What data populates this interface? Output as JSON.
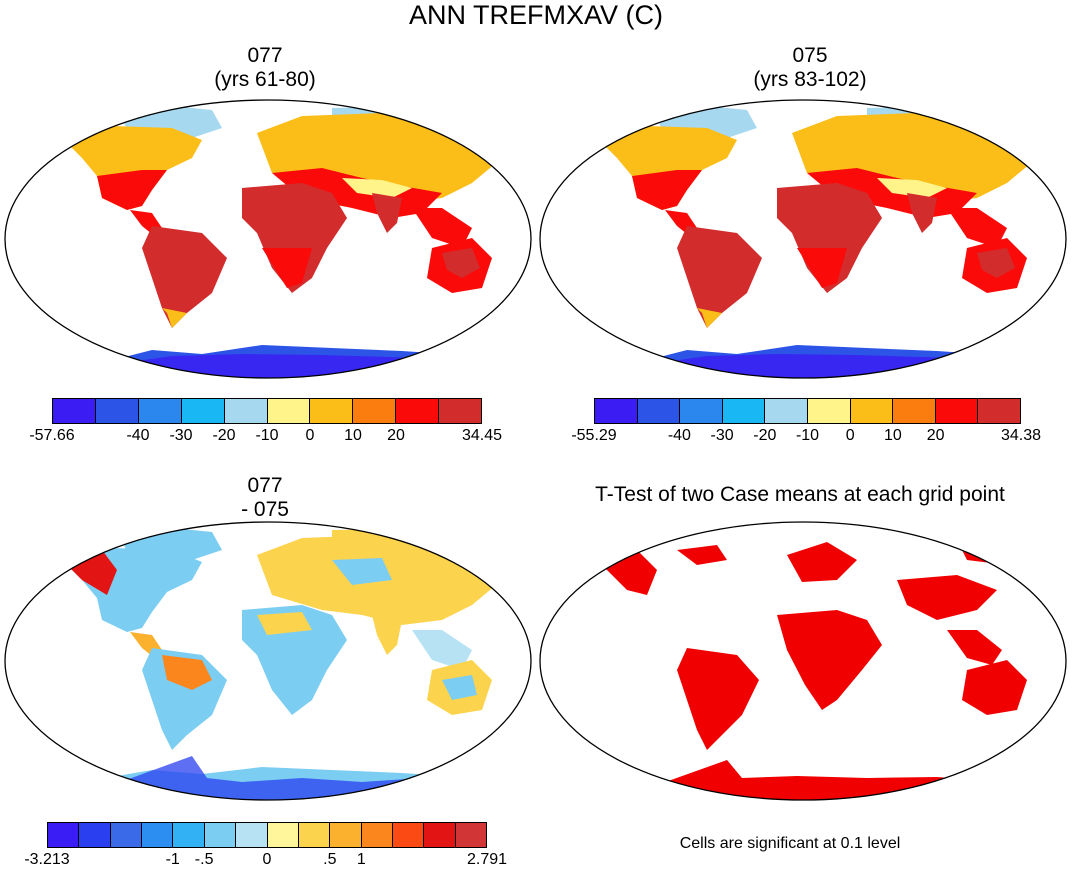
{
  "title": "ANN TREFMXAV (C)",
  "panels": {
    "top_left": {
      "title_line1": "077",
      "title_line2": "(yrs 61-80)"
    },
    "top_right": {
      "title_line1": "075",
      "title_line2": "(yrs 83-102)"
    },
    "bottom_left": {
      "title_line1": "077",
      "title_line2": "- 075"
    },
    "bottom_right": {
      "title": "T-Test of two Case means at each grid point"
    }
  },
  "colorbars": {
    "absolute_left": {
      "colors": [
        "#3b1cf2",
        "#2c55e8",
        "#2b86ee",
        "#1ab7f5",
        "#a6d8f0",
        "#fff48a",
        "#fbbd17",
        "#fb7d10",
        "#fb0a0a",
        "#d22c2c"
      ],
      "labels": [
        "-57.66",
        "-40",
        "-30",
        "-20",
        "-10",
        "0",
        "10",
        "20",
        "34.45"
      ]
    },
    "absolute_right": {
      "colors": [
        "#3b1cf2",
        "#2c55e8",
        "#2b86ee",
        "#1ab7f5",
        "#a6d8f0",
        "#fff48a",
        "#fbbd17",
        "#fb7d10",
        "#fb0a0a",
        "#d22c2c"
      ],
      "labels": [
        "-55.29",
        "-40",
        "-30",
        "-20",
        "-10",
        "0",
        "10",
        "20",
        "34.38"
      ]
    },
    "difference": {
      "colors": [
        "#3a1cf5",
        "#2a3ff0",
        "#3a6ae8",
        "#2b8ef0",
        "#32b2f5",
        "#7ccdf2",
        "#b6e2f4",
        "#fff59a",
        "#fcd34d",
        "#fbb12e",
        "#fb861e",
        "#fb4a14",
        "#e31414",
        "#d23535"
      ],
      "labels": [
        "-3.213",
        "-1",
        "-.5",
        "0",
        ".5",
        "1",
        "2.791"
      ]
    }
  },
  "footnote": "Cells are significant at 0.1 level",
  "significance_color": "#f00000"
}
